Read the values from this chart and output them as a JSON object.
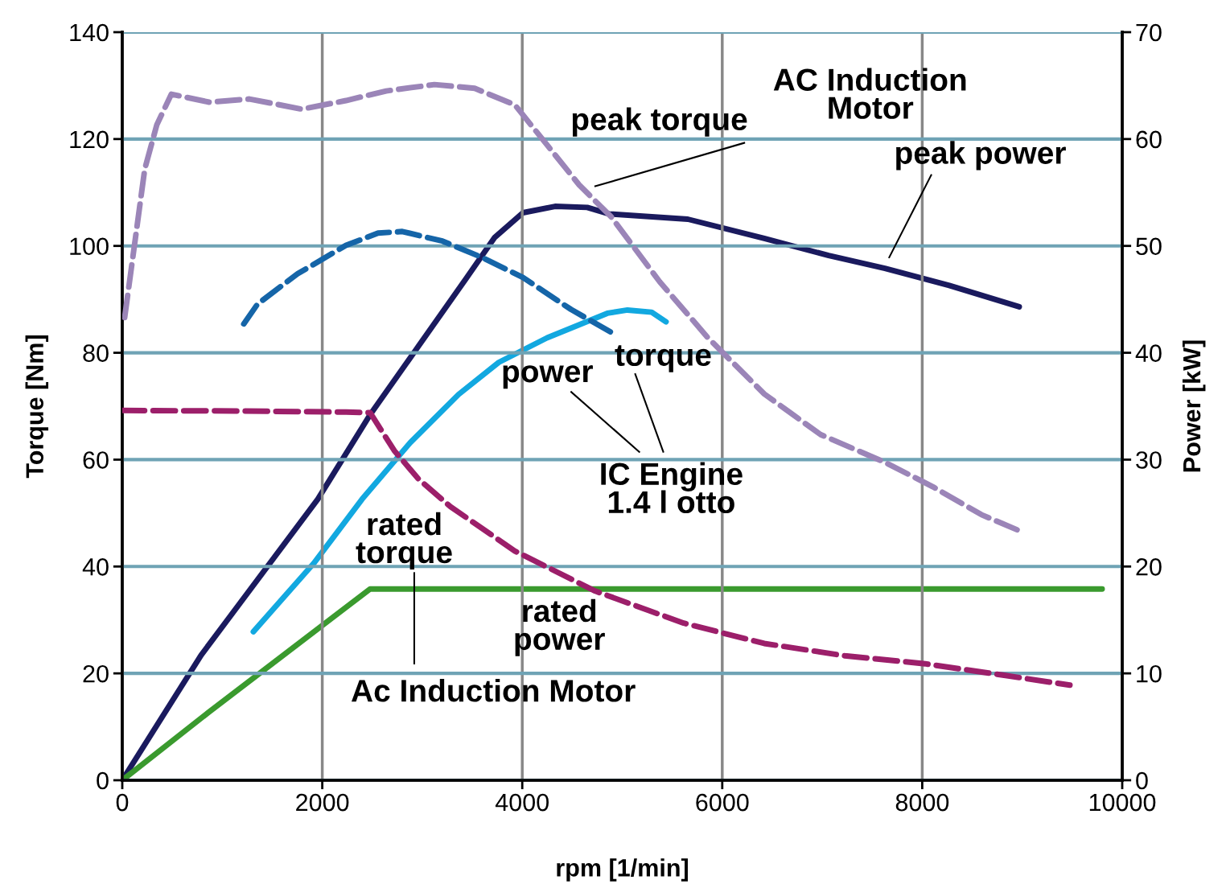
{
  "chart_data": {
    "type": "line",
    "xlabel": "rpm [1/min]",
    "ylabel": "Torque [Nm]",
    "y2label": "Power [kW]",
    "xlim": [
      0,
      10000
    ],
    "xticks": [
      0,
      2000,
      4000,
      6000,
      8000,
      10000
    ],
    "ylim": [
      0,
      140
    ],
    "yticks": [
      0,
      20,
      40,
      60,
      80,
      100,
      120,
      140
    ],
    "y2lim": [
      0,
      70
    ],
    "y2ticks": [
      0,
      10,
      20,
      30,
      40,
      50,
      60,
      70
    ],
    "grid": true,
    "marker": "none",
    "series": [
      {
        "color": "#9b85b8",
        "line_style": "dashed",
        "x": [
          24,
          105,
          225,
          346,
          491,
          869,
          1271,
          1794,
          2237,
          2639,
          3121,
          3524,
          3926,
          4248,
          4570,
          4891,
          5374,
          5857,
          6420,
          6983,
          7627,
          8109,
          8592,
          8970
        ],
        "values": [
          86.6,
          97.8,
          114.4,
          122.7,
          128.4,
          126.9,
          127.5,
          125.6,
          127.2,
          129.0,
          130.2,
          129.5,
          126.4,
          118.9,
          111.4,
          105.4,
          93.3,
          82.8,
          72.3,
          64.7,
          59.5,
          54.9,
          49.7,
          46.7
        ]
      },
      {
        "color": "#1a1a5e",
        "line_style": "solid",
        "axis": "y2",
        "x": [
          0,
          788,
          1955,
          2478,
          2961,
          3443,
          3725,
          4006,
          4328,
          4650,
          4867,
          5656,
          6420,
          7064,
          7627,
          8270,
          8970
        ],
        "values": [
          0,
          11.7,
          26.3,
          34.2,
          40.6,
          47.0,
          50.8,
          53.1,
          53.7,
          53.6,
          53.0,
          52.5,
          50.7,
          49.1,
          47.9,
          46.3,
          44.3
        ]
      },
      {
        "color": "#1565a8",
        "line_style": "dashed",
        "x": [
          1215,
          1352,
          1754,
          2237,
          2558,
          2800,
          3202,
          3604,
          4006,
          4489,
          4948
        ],
        "values": [
          85.4,
          89.1,
          94.8,
          100.1,
          102.4,
          102.7,
          100.9,
          97.8,
          94.1,
          88.1,
          83.2
        ]
      },
      {
        "color": "#12a8e0",
        "line_style": "solid",
        "axis": "y2",
        "x": [
          1311,
          1915,
          2398,
          2880,
          3363,
          3765,
          4248,
          4851,
          5052,
          5294,
          5438
        ],
        "values": [
          13.9,
          20.3,
          26.3,
          31.6,
          36.1,
          39.1,
          41.4,
          43.7,
          44.0,
          43.8,
          42.9
        ]
      },
      {
        "color": "#9c1f6a",
        "line_style": "dashed",
        "x": [
          0,
          1191,
          2237,
          2478,
          2720,
          2961,
          3282,
          3926,
          4730,
          5615,
          6420,
          7224,
          8029,
          8833,
          9477
        ],
        "values": [
          69.2,
          69.1,
          68.9,
          68.8,
          61.7,
          56.4,
          51.2,
          42.9,
          35.4,
          29.4,
          25.6,
          23.3,
          21.8,
          19.6,
          17.8
        ]
      },
      {
        "color": "#3a9a2e",
        "line_style": "solid",
        "axis": "y2",
        "x": [
          0,
          869,
          2478,
          9799
        ],
        "values": [
          0,
          6.4,
          17.9,
          17.9
        ]
      }
    ],
    "annotations": [
      "AC Induction\nMotor",
      "peak torque",
      "peak power",
      "torque",
      "power",
      "IC Engine\n1.4 l otto",
      "rated\ntorque",
      "rated\npower",
      "Ac Induction Motor"
    ]
  }
}
